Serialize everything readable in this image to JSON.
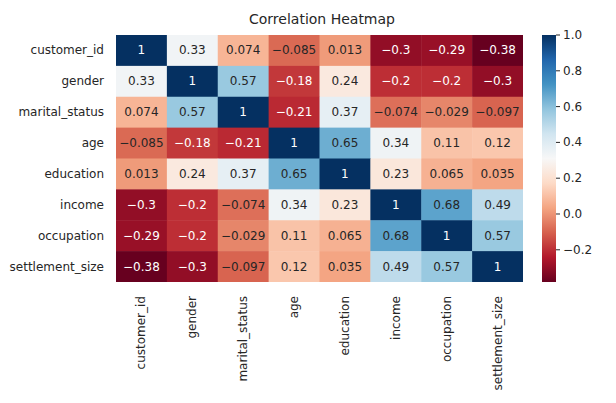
{
  "chart_data": {
    "type": "heatmap",
    "title": "Correlation Heatmap",
    "categories": [
      "customer_id",
      "gender",
      "marital_status",
      "age",
      "education",
      "income",
      "occupation",
      "settlement_size"
    ],
    "cells": [
      [
        1,
        0.33,
        0.074,
        -0.085,
        0.013,
        -0.3,
        -0.29,
        -0.38
      ],
      [
        0.33,
        1,
        0.57,
        -0.18,
        0.24,
        -0.2,
        -0.2,
        -0.3
      ],
      [
        0.074,
        0.57,
        1,
        -0.21,
        0.37,
        -0.074,
        -0.029,
        -0.097
      ],
      [
        -0.085,
        -0.18,
        -0.21,
        1,
        0.65,
        0.34,
        0.11,
        0.12
      ],
      [
        0.013,
        0.24,
        0.37,
        0.65,
        1,
        0.23,
        0.065,
        0.035
      ],
      [
        -0.3,
        -0.2,
        -0.074,
        0.34,
        0.23,
        1,
        0.68,
        0.49
      ],
      [
        -0.29,
        -0.2,
        -0.029,
        0.11,
        0.065,
        0.68,
        1,
        0.57
      ],
      [
        -0.38,
        -0.3,
        -0.097,
        0.12,
        0.035,
        0.49,
        0.57,
        1
      ]
    ],
    "colorbar_range": [
      -0.38,
      1
    ],
    "colorbar_ticks": [
      -0.2,
      {
        "value": 0,
        "label": "0.0"
      },
      0.2,
      0.4,
      0.6,
      0.8,
      {
        "value": 1,
        "label": "1.0"
      }
    ],
    "color": "RdBu",
    "data_labels": true
  }
}
